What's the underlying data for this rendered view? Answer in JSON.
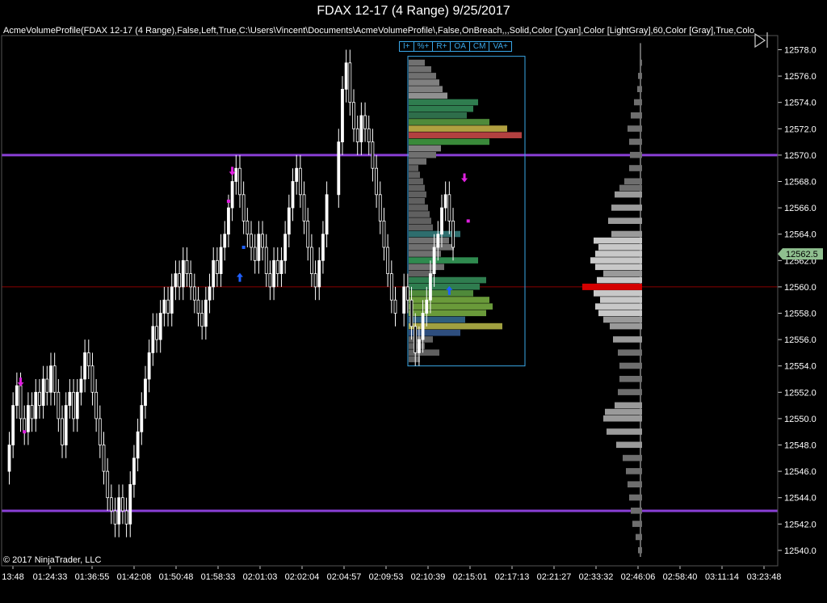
{
  "window": {
    "title": "FDAX 12-17 (4 Range)  9/25/2017",
    "indicator_label": "AcmeVolumeProfile(FDAX 12-17 (4 Range),False,Left,True,C:\\Users\\Vincent\\Documents\\AcmeVolumeProfile\\,False,OnBreach,,,Solid,Color [Cyan],Color [LightGray],60,Color [Gray],True,Colo",
    "copyright": "© 2017 NinjaTrader, LLC"
  },
  "volume_profile_toolbar": [
    "I+",
    "%+",
    "R+",
    "OA",
    "CM",
    "VA+"
  ],
  "colors": {
    "background": "#000000",
    "purple_level": "#8a3fd6",
    "poc_line": "#8b0000",
    "candle": "#ffffff",
    "profile_box": "#3aa7e8",
    "last_price_tag": "#8fbf8f",
    "session_profile_poc": "#d40000"
  },
  "chart_data": {
    "type": "candlestick",
    "instrument": "FDAX 12-17 (4 Range)",
    "date": "9/25/2017",
    "y_ticks": [
      12578,
      12576,
      12574,
      12572,
      12570,
      12568,
      12566,
      12564,
      12562,
      12560,
      12558,
      12556,
      12554,
      12552,
      12550,
      12548,
      12546,
      12544,
      12542,
      12540
    ],
    "x_ticks": [
      "13:48",
      "01:24:33",
      "01:36:55",
      "01:42:08",
      "01:50:48",
      "01:58:33",
      "02:01:03",
      "02:02:04",
      "02:04:57",
      "02:09:53",
      "02:10:39",
      "02:15:01",
      "02:17:13",
      "02:21:27",
      "02:33:32",
      "02:46:06",
      "02:58:40",
      "03:11:14",
      "03:23:48"
    ],
    "last_price": "12562.5",
    "horizontal_lines": [
      {
        "price": 12570,
        "style": "purple"
      },
      {
        "price": 12543,
        "style": "purple"
      },
      {
        "price": 12560,
        "style": "poc"
      }
    ],
    "closes": [
      12548,
      12551,
      12552.5,
      12550,
      12549,
      12551,
      12550,
      12552,
      12551,
      12553,
      12552,
      12554,
      12552,
      12550,
      12548,
      12551,
      12552,
      12550,
      12552,
      12553,
      12555,
      12554,
      12552,
      12550,
      12548,
      12546,
      12544,
      12543,
      12542,
      12544,
      12543,
      12542,
      12545,
      12547,
      12549,
      12551,
      12553,
      12555,
      12557,
      12556,
      12558,
      12559,
      12558,
      12560,
      12561,
      12560,
      12562,
      12561,
      12560,
      12559,
      12558,
      12557,
      12559,
      12560,
      12562,
      12561,
      12563,
      12564,
      12566,
      12568,
      12569,
      12567,
      12565,
      12564,
      12563,
      12562,
      12564,
      12563,
      12561,
      12560,
      12562,
      12561,
      12562,
      12564,
      12566,
      12568,
      12569,
      12567,
      12565,
      12563,
      12561,
      12560,
      12562,
      12564,
      12567,
      12571,
      12575,
      12577,
      12574,
      12572,
      12571,
      12573,
      12572,
      12571,
      12569,
      12567,
      12565,
      12563,
      12561,
      12559,
      12558,
      12560,
      12559,
      12557,
      12555,
      12556,
      12558,
      12559,
      12561,
      12563,
      12564,
      12566,
      12567,
      12565,
      12563
    ]
  },
  "profiles": {
    "composite_box": {
      "price_top": 12577.5,
      "price_bottom": 12554
    },
    "composite_volumes": [
      {
        "price": 12577,
        "vol": 20,
        "color": "#707070"
      },
      {
        "price": 12576.5,
        "vol": 28,
        "color": "#707070"
      },
      {
        "price": 12576,
        "vol": 34,
        "color": "#707070"
      },
      {
        "price": 12575.5,
        "vol": 38,
        "color": "#808080"
      },
      {
        "price": 12575,
        "vol": 42,
        "color": "#808080"
      },
      {
        "price": 12574.5,
        "vol": 48,
        "color": "#909090"
      },
      {
        "price": 12574,
        "vol": 86,
        "color": "#2f7d4f"
      },
      {
        "price": 12573.5,
        "vol": 80,
        "color": "#2f7d4f"
      },
      {
        "price": 12573,
        "vol": 72,
        "color": "#2e6e4a"
      },
      {
        "price": 12572.5,
        "vol": 100,
        "color": "#4f8a3a"
      },
      {
        "price": 12572,
        "vol": 122,
        "color": "#b0a040"
      },
      {
        "price": 12571.5,
        "vol": 140,
        "color": "#b24040"
      },
      {
        "price": 12571,
        "vol": 100,
        "color": "#3a8a3a"
      },
      {
        "price": 12570.5,
        "vol": 40,
        "color": "#808080"
      },
      {
        "price": 12570,
        "vol": 34,
        "color": "#707070"
      },
      {
        "price": 12569.5,
        "vol": 22,
        "color": "#707070"
      },
      {
        "price": 12569,
        "vol": 12,
        "color": "#606060"
      },
      {
        "price": 12568.5,
        "vol": 14,
        "color": "#606060"
      },
      {
        "price": 12568,
        "vol": 18,
        "color": "#606060"
      },
      {
        "price": 12567.5,
        "vol": 20,
        "color": "#606060"
      },
      {
        "price": 12567,
        "vol": 22,
        "color": "#606060"
      },
      {
        "price": 12566.5,
        "vol": 20,
        "color": "#606060"
      },
      {
        "price": 12566,
        "vol": 24,
        "color": "#606060"
      },
      {
        "price": 12565.5,
        "vol": 26,
        "color": "#606060"
      },
      {
        "price": 12565,
        "vol": 28,
        "color": "#606060"
      },
      {
        "price": 12564.5,
        "vol": 30,
        "color": "#606060"
      },
      {
        "price": 12564,
        "vol": 64,
        "color": "#2e6e6e"
      },
      {
        "price": 12563.5,
        "vol": 50,
        "color": "#707070"
      },
      {
        "price": 12563,
        "vol": 56,
        "color": "#707070"
      },
      {
        "price": 12562.5,
        "vol": 40,
        "color": "#707070"
      },
      {
        "price": 12562,
        "vol": 86,
        "color": "#2f8a4f"
      },
      {
        "price": 12561.5,
        "vol": 44,
        "color": "#707070"
      },
      {
        "price": 12561,
        "vol": 30,
        "color": "#606060"
      },
      {
        "price": 12560.5,
        "vol": 96,
        "color": "#2f7d4f"
      },
      {
        "price": 12560,
        "vol": 88,
        "color": "#2f7d4f"
      },
      {
        "price": 12559.5,
        "vol": 80,
        "color": "#4f8a3a"
      },
      {
        "price": 12559,
        "vol": 100,
        "color": "#6a9a3a"
      },
      {
        "price": 12558.5,
        "vol": 104,
        "color": "#6a9a3a"
      },
      {
        "price": 12558,
        "vol": 96,
        "color": "#6a9a3a"
      },
      {
        "price": 12557.5,
        "vol": 70,
        "color": "#2e5e7e"
      },
      {
        "price": 12557,
        "vol": 116,
        "color": "#a0a040"
      },
      {
        "price": 12556.5,
        "vol": 64,
        "color": "#2e4e7e"
      },
      {
        "price": 12556,
        "vol": 30,
        "color": "#606060"
      },
      {
        "price": 12555.5,
        "vol": 20,
        "color": "#606060"
      },
      {
        "price": 12555,
        "vol": 38,
        "color": "#606060"
      },
      {
        "price": 12554.5,
        "vol": 14,
        "color": "#606060"
      }
    ],
    "session_volumes": [
      {
        "price": 12577,
        "vol": 3
      },
      {
        "price": 12576,
        "vol": 5
      },
      {
        "price": 12575,
        "vol": 6
      },
      {
        "price": 12574,
        "vol": 10
      },
      {
        "price": 12573,
        "vol": 14
      },
      {
        "price": 12572,
        "vol": 18
      },
      {
        "price": 12571,
        "vol": 16
      },
      {
        "price": 12570,
        "vol": 15
      },
      {
        "price": 12569,
        "vol": 16
      },
      {
        "price": 12568,
        "vol": 22
      },
      {
        "price": 12567.5,
        "vol": 28
      },
      {
        "price": 12567,
        "vol": 34
      },
      {
        "price": 12566,
        "vol": 38
      },
      {
        "price": 12565,
        "vol": 42
      },
      {
        "price": 12564,
        "vol": 38
      },
      {
        "price": 12563.5,
        "vol": 60
      },
      {
        "price": 12563,
        "vol": 54
      },
      {
        "price": 12562.5,
        "vol": 58
      },
      {
        "price": 12562,
        "vol": 64
      },
      {
        "price": 12561.5,
        "vol": 58
      },
      {
        "price": 12561,
        "vol": 48
      },
      {
        "price": 12560.5,
        "vol": 56
      },
      {
        "price": 12560,
        "vol": 74,
        "poc": true
      },
      {
        "price": 12559.5,
        "vol": 60
      },
      {
        "price": 12559,
        "vol": 52
      },
      {
        "price": 12558.5,
        "vol": 58
      },
      {
        "price": 12558,
        "vol": 54
      },
      {
        "price": 12557.5,
        "vol": 48
      },
      {
        "price": 12557,
        "vol": 40
      },
      {
        "price": 12556,
        "vol": 36
      },
      {
        "price": 12555,
        "vol": 30
      },
      {
        "price": 12554,
        "vol": 28
      },
      {
        "price": 12553,
        "vol": 28
      },
      {
        "price": 12552,
        "vol": 30
      },
      {
        "price": 12551,
        "vol": 34
      },
      {
        "price": 12550.5,
        "vol": 46
      },
      {
        "price": 12550,
        "vol": 48
      },
      {
        "price": 12549,
        "vol": 44
      },
      {
        "price": 12548,
        "vol": 32
      },
      {
        "price": 12547,
        "vol": 24
      },
      {
        "price": 12546,
        "vol": 20
      },
      {
        "price": 12545,
        "vol": 18
      },
      {
        "price": 12544,
        "vol": 16
      },
      {
        "price": 12543,
        "vol": 14
      },
      {
        "price": 12542,
        "vol": 12
      },
      {
        "price": 12541,
        "vol": 8
      },
      {
        "price": 12540,
        "vol": 5
      }
    ]
  },
  "markers": [
    {
      "kind": "arrow-down",
      "color": "#e020e0",
      "bar": 3,
      "price": 12552.5
    },
    {
      "kind": "dot",
      "color": "#e020e0",
      "bar": 4,
      "price": 12549
    },
    {
      "kind": "arrow-down",
      "color": "#e020e0",
      "bar": 59,
      "price": 12568.5
    },
    {
      "kind": "dot",
      "color": "#e020e0",
      "bar": 58,
      "price": 12566.5
    },
    {
      "kind": "arrow-up",
      "color": "#2060ff",
      "bar": 61,
      "price": 12561
    },
    {
      "kind": "dot",
      "color": "#2060ff",
      "bar": 62,
      "price": 12563
    },
    {
      "kind": "arrow-up",
      "color": "#2060ff",
      "bar": 113,
      "price": 12560
    },
    {
      "kind": "arrow-down",
      "color": "#e020e0",
      "bar": 117,
      "price": 12568
    },
    {
      "kind": "dot",
      "color": "#e020e0",
      "bar": 118,
      "price": 12565
    }
  ]
}
